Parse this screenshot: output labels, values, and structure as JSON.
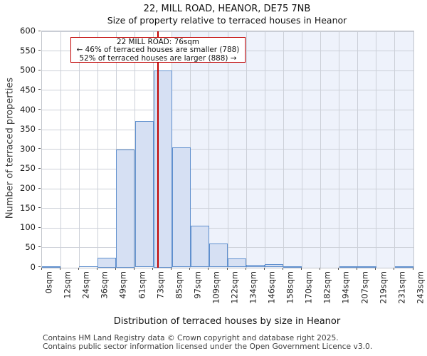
{
  "title": "22, MILL ROAD, HEANOR, DE75 7NB",
  "subtitle": "Size of property relative to terraced houses in Heanor",
  "annotation": {
    "line1": "22 MILL ROAD: 76sqm",
    "line2": "← 46% of terraced houses are smaller (788)",
    "line3": "52% of terraced houses are larger (888) →"
  },
  "chart_data": {
    "type": "bar",
    "title": "22, MILL ROAD, HEANOR, DE75 7NB",
    "subtitle": "Size of property relative to terraced houses in Heanor",
    "xlabel": "Distribution of terraced houses by size in Heanor",
    "ylabel": "Number of terraced properties",
    "bin_edges_sqm": [
      0,
      12,
      24,
      36,
      49,
      61,
      73,
      85,
      97,
      109,
      122,
      134,
      146,
      158,
      170,
      182,
      194,
      207,
      219,
      231,
      243
    ],
    "x_tick_labels": [
      "0sqm",
      "12sqm",
      "24sqm",
      "36sqm",
      "49sqm",
      "61sqm",
      "73sqm",
      "85sqm",
      "97sqm",
      "109sqm",
      "122sqm",
      "134sqm",
      "146sqm",
      "158sqm",
      "170sqm",
      "182sqm",
      "194sqm",
      "207sqm",
      "219sqm",
      "231sqm",
      "243sqm"
    ],
    "values": [
      2,
      0,
      3,
      25,
      300,
      372,
      500,
      305,
      105,
      60,
      22,
      6,
      8,
      2,
      0,
      0,
      2,
      2,
      0,
      2
    ],
    "ylim": [
      0,
      600
    ],
    "y_ticks": [
      0,
      50,
      100,
      150,
      200,
      250,
      300,
      350,
      400,
      450,
      500,
      550,
      600
    ],
    "marker_sqm": 76,
    "grid": true,
    "legend": "none"
  },
  "footer": {
    "line1": "Contains HM Land Registry data © Crown copyright and database right 2025.",
    "line2": "Contains public sector information licensed under the Open Government Licence v3.0."
  },
  "colors": {
    "bar_fill": "#d6e0f3",
    "bar_edge": "#6090ce",
    "marker_red": "#c00000",
    "annotation_border": "#c00000",
    "grid": "#ccd0d8",
    "tint_region": "#eef2fb",
    "plot_border": "#c1c5cc",
    "text": "#111111",
    "footer_text": "#3f3f3f"
  }
}
